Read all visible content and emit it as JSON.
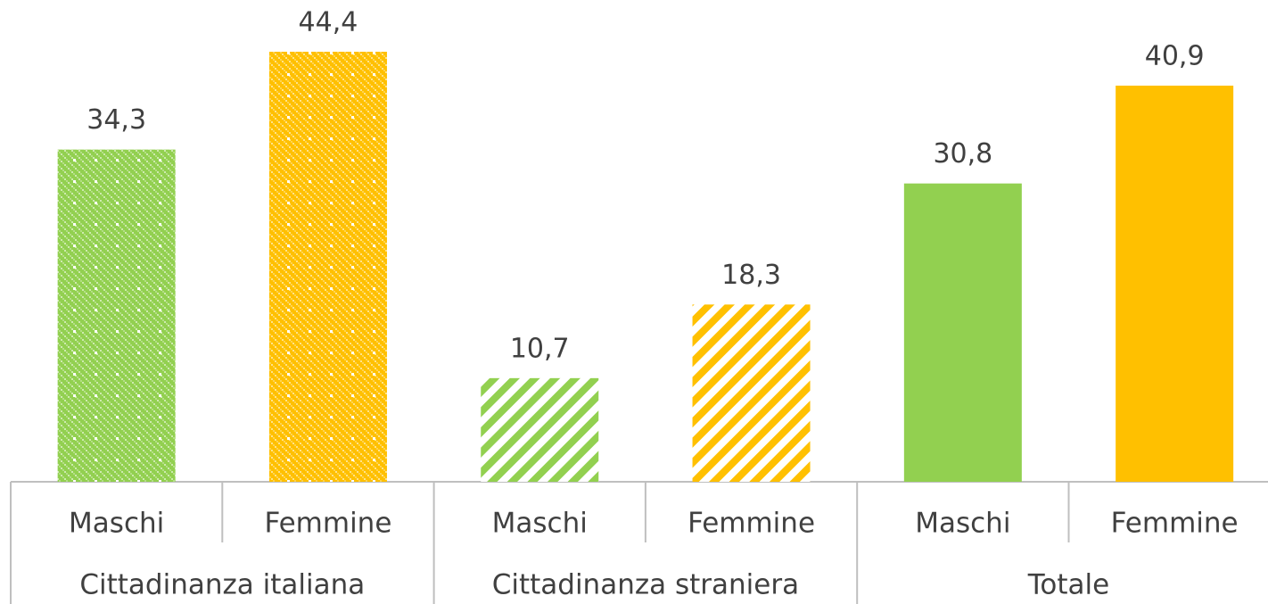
{
  "chart_data": {
    "type": "bar",
    "colors": [
      "#92d050",
      "#ffc000"
    ],
    "groups": [
      {
        "name": "Cittadinanza italiana",
        "pattern": "dots",
        "categories": [
          "Maschi",
          "Femmine"
        ],
        "values": [
          34.3,
          44.4
        ],
        "value_labels": [
          "34,3",
          "44,4"
        ]
      },
      {
        "name": "Cittadinanza straniera",
        "pattern": "stripes",
        "categories": [
          "Maschi",
          "Femmine"
        ],
        "values": [
          10.7,
          18.3
        ],
        "value_labels": [
          "10,7",
          "18,3"
        ]
      },
      {
        "name": "Totale",
        "pattern": "solid",
        "categories": [
          "Maschi",
          "Femmine"
        ],
        "values": [
          30.8,
          40.9
        ],
        "value_labels": [
          "30,8",
          "40,9"
        ]
      }
    ]
  }
}
